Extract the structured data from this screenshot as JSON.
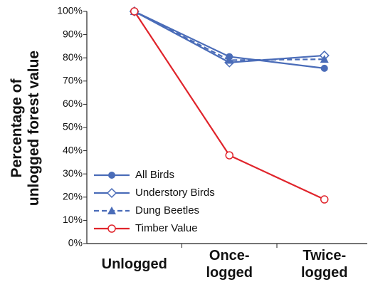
{
  "chart_data": {
    "type": "line",
    "ylabel": [
      "Percentage of",
      "unlogged forest value"
    ],
    "categories": [
      [
        "Unlogged"
      ],
      [
        "Once-",
        "logged"
      ],
      [
        "Twice-",
        "logged"
      ]
    ],
    "ylim": [
      0,
      100
    ],
    "yticks": [
      {
        "value": 0,
        "label": "0%"
      },
      {
        "value": 10,
        "label": "10%"
      },
      {
        "value": 20,
        "label": "20%"
      },
      {
        "value": 30,
        "label": "30%"
      },
      {
        "value": 40,
        "label": "40%"
      },
      {
        "value": 50,
        "label": "50%"
      },
      {
        "value": 60,
        "label": "60%"
      },
      {
        "value": 70,
        "label": "70%"
      },
      {
        "value": 80,
        "label": "80%"
      },
      {
        "value": 90,
        "label": "90%"
      },
      {
        "value": 100,
        "label": "100%"
      }
    ],
    "legend": "lower left",
    "series": [
      {
        "name": "All Birds",
        "color": "#4a6cb8",
        "marker": "circle",
        "dash": false,
        "values": [
          100,
          80.5,
          75.5
        ]
      },
      {
        "name": "Understory Birds",
        "color": "#4a6cb8",
        "marker": "diamond",
        "dash": false,
        "values": [
          100,
          78,
          81
        ]
      },
      {
        "name": "Dung Beetles",
        "color": "#4a6cb8",
        "marker": "triangle",
        "dash": true,
        "values": [
          100,
          79,
          79.4
        ]
      },
      {
        "name": "Timber Value",
        "color": "#e0242b",
        "marker": "open-circle",
        "dash": false,
        "values": [
          100,
          38,
          19
        ]
      }
    ]
  }
}
